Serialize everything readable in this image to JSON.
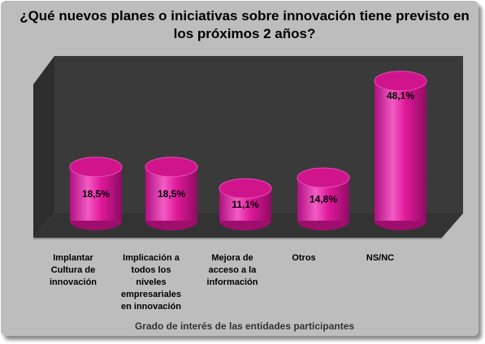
{
  "chart_data": {
    "type": "bar",
    "title": "¿Qué nuevos planes o iniciativas sobre innovación tiene previsto en los próximos 2 años?",
    "xlabel": "Grado de interés de las entidades participantes",
    "ylabel": "",
    "categories": [
      "Implantar Cultura de innovación",
      "Implicación a todos los niveles empresariales en innovación",
      "Mejora de acceso a la información",
      "Otros",
      "NS/NC"
    ],
    "values": [
      18.5,
      18.5,
      11.1,
      14.8,
      48.1
    ],
    "value_labels": [
      "18,5%",
      "18,5%",
      "11,1%",
      "14,8%",
      "48,1%"
    ],
    "ylim": [
      0,
      50
    ],
    "grid": false,
    "legend": "none",
    "colors": {
      "bar": "#e0189a",
      "bar_light": "#f060c0",
      "bar_dark": "#9e0e6c",
      "bar_top": "#d0148c",
      "background_wall": "#3a3a3a",
      "floor": "#3a3a3a",
      "frame": "#bdbdbd"
    }
  }
}
